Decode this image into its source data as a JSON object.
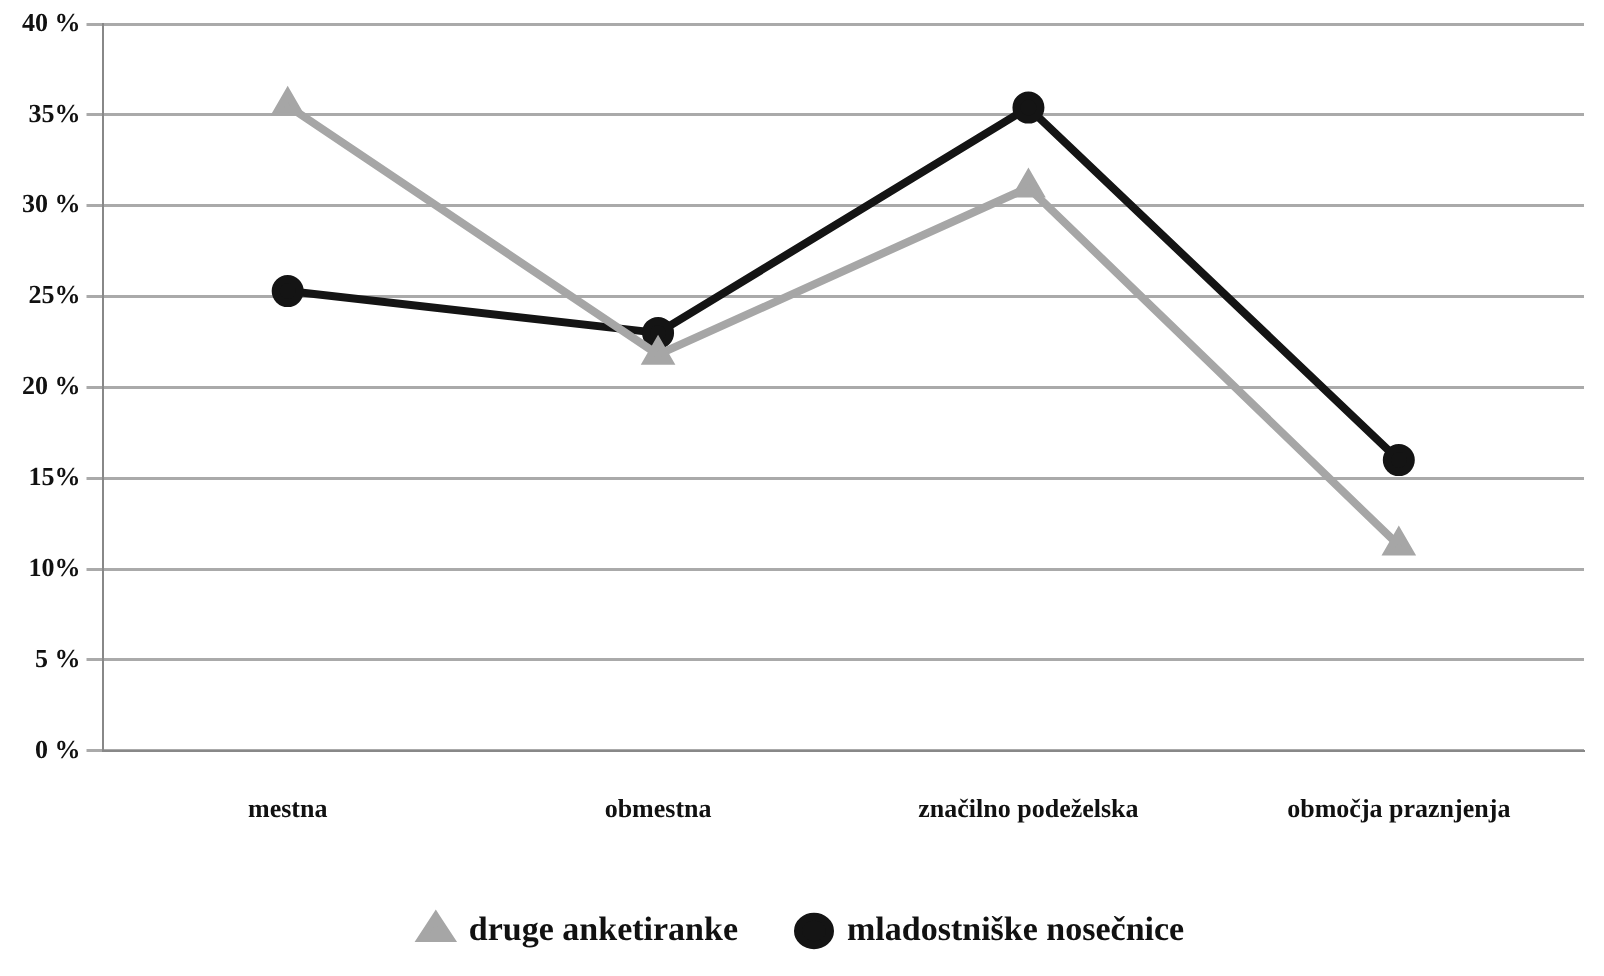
{
  "chart_data": {
    "type": "line",
    "categories": [
      "mestna",
      "obmestna",
      "značilno podeželska",
      "območja praznjenja"
    ],
    "series": [
      {
        "name": "druge anketiranke",
        "color": "#a6a6a6",
        "marker": "triangle",
        "values": [
          35.5,
          21.8,
          31.0,
          11.3
        ]
      },
      {
        "name": "mladostniške nosečnice",
        "color": "#141414",
        "marker": "circle",
        "values": [
          25.3,
          23.0,
          35.4,
          16.0
        ]
      }
    ],
    "ylim": [
      0,
      40
    ],
    "yticks": [
      {
        "value": 0,
        "label": "0 %"
      },
      {
        "value": 5,
        "label": "5 %"
      },
      {
        "value": 10,
        "label": "10%"
      },
      {
        "value": 15,
        "label": "15%"
      },
      {
        "value": 20,
        "label": "20 %"
      },
      {
        "value": 25,
        "label": "25%"
      },
      {
        "value": 30,
        "label": "30 %"
      },
      {
        "value": 35,
        "label": "35%"
      },
      {
        "value": 40,
        "label": "40 %"
      }
    ],
    "grid": "y",
    "legend": "bottom",
    "line_style": "solid"
  }
}
